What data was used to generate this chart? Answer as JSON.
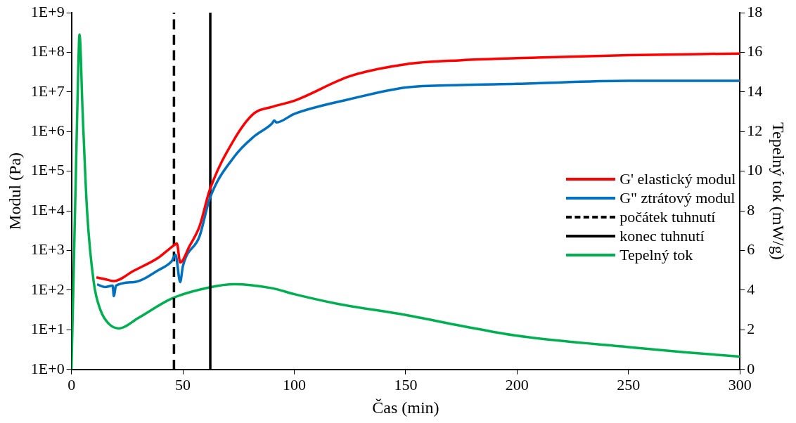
{
  "chart_data": {
    "type": "line",
    "xlabel": "Čas (min)",
    "ylabel": "Modul (Pa)",
    "y2label": "Tepelný tok (mW/g)",
    "xlim": [
      0,
      300
    ],
    "xticks": [
      0,
      50,
      100,
      150,
      200,
      250,
      300
    ],
    "ylim": [
      1,
      1000000000
    ],
    "yticks": [
      {
        "value": 1,
        "label": "1E+0"
      },
      {
        "value": 10,
        "label": "1E+1"
      },
      {
        "value": 100,
        "label": "1E+2"
      },
      {
        "value": 1000,
        "label": "1E+3"
      },
      {
        "value": 10000,
        "label": "1E+4"
      },
      {
        "value": 100000,
        "label": "1E+5"
      },
      {
        "value": 1000000,
        "label": "1E+6"
      },
      {
        "value": 10000000,
        "label": "1E+7"
      },
      {
        "value": 100000000,
        "label": "1E+8"
      },
      {
        "value": 1000000000,
        "label": "1E+9"
      }
    ],
    "y2lim": [
      0,
      18
    ],
    "y2ticks": [
      0,
      2,
      4,
      6,
      8,
      10,
      12,
      14,
      16,
      18
    ],
    "log": "y",
    "grid": false,
    "legend": "right",
    "marker": "none",
    "series": [
      {
        "name": "G' elastický modul",
        "color": "#ff0000",
        "x": [
          11.2,
          15,
          19,
          28,
          39,
          45.6,
          47.3,
          48.8,
          53,
          57.5,
          62,
          73,
          82,
          90,
          100,
          125,
          150,
          175,
          200,
          250,
          300
        ],
        "values": [
          210,
          190,
          170,
          310,
          660,
          1300,
          1500,
          500,
          1300,
          4100,
          33000,
          630000,
          2900000,
          4200000,
          6000000,
          25000000,
          50000000,
          63000000,
          71000000,
          85000000,
          93000000
        ]
      },
      {
        "name": "G\" ztrátový modul",
        "color": "#0070c0",
        "x": [
          11.5,
          15,
          18.5,
          19,
          20,
          28,
          39,
          45,
          46.7,
          48.8,
          50,
          57.5,
          62,
          73,
          82,
          90,
          91,
          92,
          100,
          125,
          150,
          175,
          200,
          250,
          300
        ],
        "values": [
          140,
          120,
          130,
          71,
          130,
          160,
          320,
          540,
          780,
          160,
          400,
          2300,
          20000,
          230000,
          760000,
          1600000,
          1900000,
          1700000,
          2800000,
          6600000,
          13000000,
          15000000,
          16000000,
          19000000,
          19000000
        ]
      },
      {
        "name": "počátek tuhnutí",
        "color": "#000000",
        "line_style": "dashed",
        "x": [
          46,
          46
        ],
        "values": [
          1,
          1000000000
        ]
      },
      {
        "name": "konec tuhnutí",
        "color": "#000000",
        "line_style": "solid",
        "x": [
          62.3,
          62.3
        ],
        "values": [
          1,
          1000000000
        ]
      },
      {
        "name": "Tepelný tok",
        "color": "#00b050",
        "axis": "y2",
        "x": [
          0,
          1,
          2,
          3,
          3.6,
          5,
          7,
          10,
          13,
          16.8,
          21.3,
          30,
          45,
          62,
          73,
          90,
          100,
          120,
          150,
          175,
          200,
          250,
          275,
          300
        ],
        "values": [
          0,
          5,
          10,
          15,
          16.9,
          13,
          8,
          4.4,
          3,
          2.3,
          2.07,
          2.6,
          3.58,
          4.14,
          4.3,
          4.1,
          3.8,
          3.3,
          2.75,
          2.2,
          1.7,
          1.13,
          0.87,
          0.65
        ]
      }
    ]
  }
}
